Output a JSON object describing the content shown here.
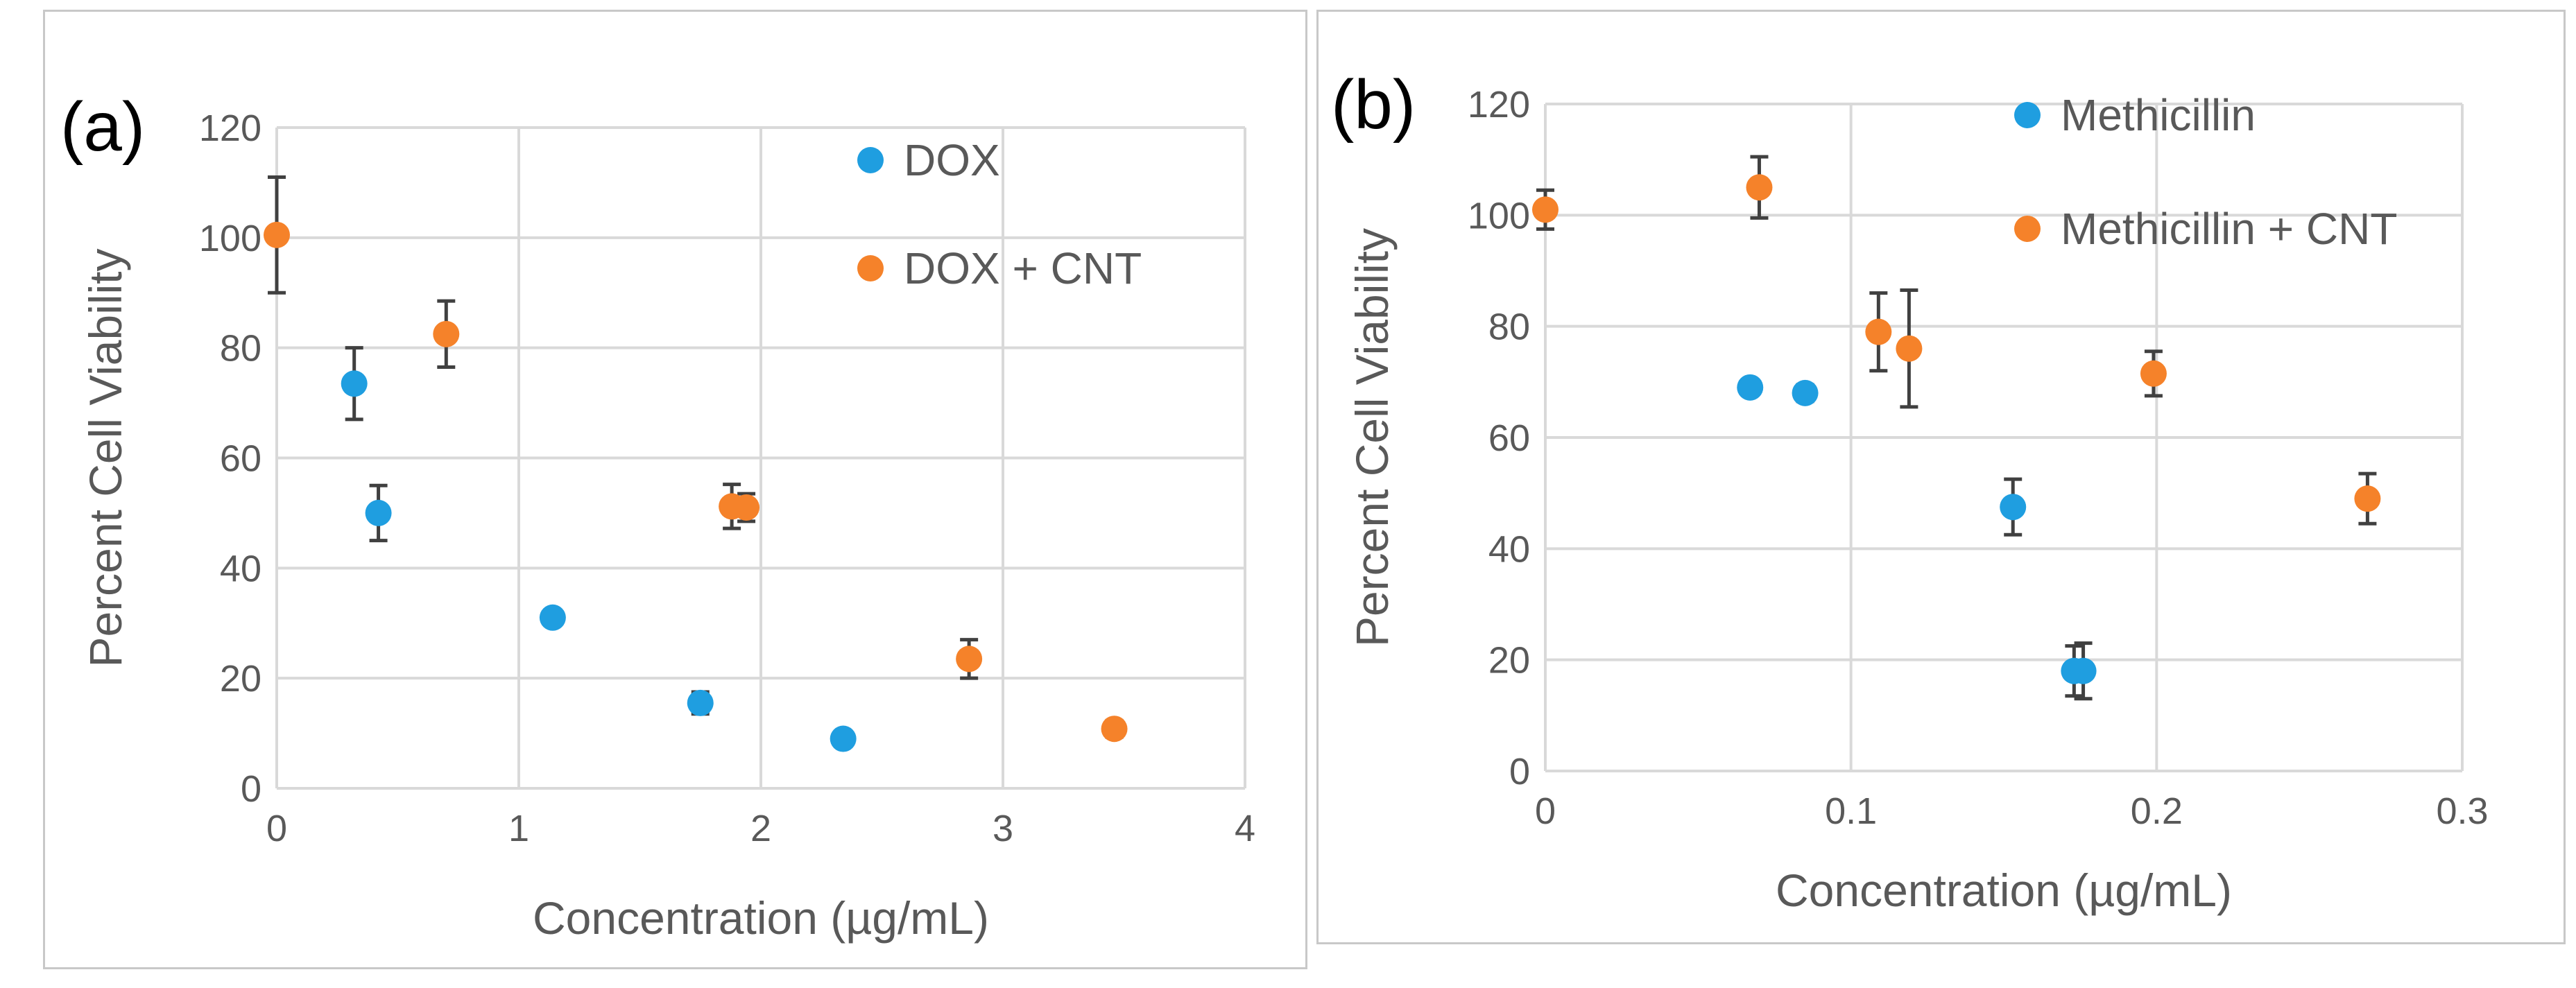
{
  "chart_data": [
    {
      "type": "scatter",
      "panel_label": "(a)",
      "xlabel": "Concentration (µg/mL)",
      "ylabel": "Percent Cell Viability",
      "xlim": [
        0,
        4
      ],
      "ylim": [
        0,
        120
      ],
      "x_ticks": [
        0,
        1,
        2,
        3,
        4
      ],
      "y_ticks": [
        0,
        20,
        40,
        60,
        80,
        100,
        120
      ],
      "grid": true,
      "legend_position": "top-right",
      "series": [
        {
          "name": "DOX",
          "color": "#1f9ee0",
          "points": [
            {
              "x": 0.32,
              "y": 73.5,
              "err": 6.5
            },
            {
              "x": 0.42,
              "y": 50.0,
              "err": 5.0
            },
            {
              "x": 1.14,
              "y": 31.0,
              "err": 1.0
            },
            {
              "x": 1.75,
              "y": 15.5,
              "err": 2.0
            },
            {
              "x": 2.34,
              "y": 9.0,
              "err": 1.0
            }
          ]
        },
        {
          "name": "DOX + CNT",
          "color": "#f5822a",
          "points": [
            {
              "x": 0.0,
              "y": 100.5,
              "err": 10.5
            },
            {
              "x": 0.7,
              "y": 82.5,
              "err": 6.0
            },
            {
              "x": 1.88,
              "y": 51.2,
              "err": 4.0
            },
            {
              "x": 1.94,
              "y": 51.0,
              "err": 2.5
            },
            {
              "x": 2.86,
              "y": 23.5,
              "err": 3.5
            },
            {
              "x": 3.46,
              "y": 10.8,
              "err": 1.5
            }
          ]
        }
      ]
    },
    {
      "type": "scatter",
      "panel_label": "(b)",
      "xlabel": "Concentration (µg/mL)",
      "ylabel": "Percent Cell Viability",
      "xlim": [
        0,
        0.3
      ],
      "ylim": [
        0,
        120
      ],
      "x_ticks": [
        0,
        0.1,
        0.2,
        0.3
      ],
      "y_ticks": [
        0,
        20,
        40,
        60,
        80,
        100,
        120
      ],
      "grid": true,
      "legend_position": "top-right",
      "series": [
        {
          "name": "Methicillin",
          "color": "#1f9ee0",
          "points": [
            {
              "x": 0.067,
              "y": 69.0,
              "err": 1.0
            },
            {
              "x": 0.085,
              "y": 68.0,
              "err": 1.5
            },
            {
              "x": 0.153,
              "y": 47.5,
              "err": 5.0
            },
            {
              "x": 0.173,
              "y": 18.0,
              "err": 4.5
            },
            {
              "x": 0.176,
              "y": 18.0,
              "err": 5.0
            }
          ]
        },
        {
          "name": "Methicillin + CNT",
          "color": "#f5822a",
          "points": [
            {
              "x": 0.0,
              "y": 101.0,
              "err": 3.5
            },
            {
              "x": 0.07,
              "y": 105.0,
              "err": 5.5
            },
            {
              "x": 0.109,
              "y": 79.0,
              "err": 7.0
            },
            {
              "x": 0.119,
              "y": 76.0,
              "err": 10.5
            },
            {
              "x": 0.199,
              "y": 71.5,
              "err": 4.0
            },
            {
              "x": 0.269,
              "y": 49.0,
              "err": 4.5
            }
          ]
        }
      ]
    }
  ]
}
